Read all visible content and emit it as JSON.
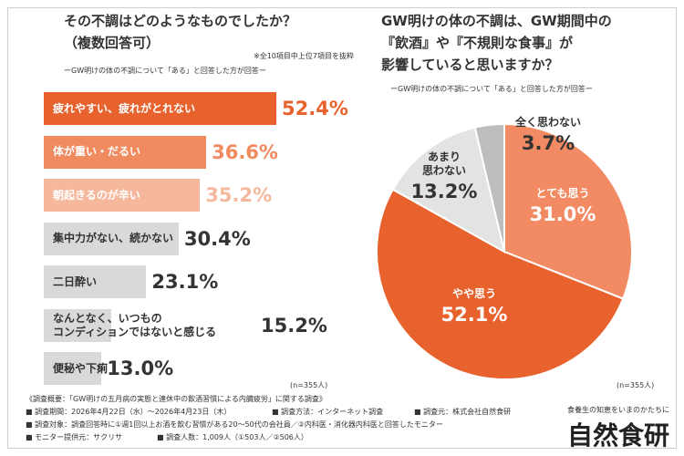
{
  "left": {
    "title_line1": "その不調はどのようなものでしたか？",
    "title_line2": "（複数回答可）",
    "note": "※全10項目中上位7項目を抜粋",
    "subtitle": "ーGW明けの体の不調について「ある」と回答した方が回答ー",
    "n": "(n=355人)"
  },
  "right": {
    "title_line1": "GW明けの体の不調は、GW期間中の",
    "title_line2": "『飲酒』や『不規則な食事』が",
    "title_line3": "影響していると思いますか？",
    "subtitle": "ーGW明けの体の不調について「ある」と回答した方が回答ー",
    "n": "(n=355人)"
  },
  "footer": {
    "line1": "《調査概要：「GW明けの五月病の実態と連休中の飲酒習慣による内臓疲労」に関する調査》",
    "period": "■ 調査期間：2026年4月22日（水）～2026年4月23日（木）",
    "method": "■ 調査方法：インターネット調査",
    "source": "■ 調査元：株式会社自然食研",
    "target": "■ 調査対象：調査回答時に①週1回以上お酒を飲む習慣がある20～50代の会社員／②内科医・消化器内科医と回答したモニター",
    "provider": "■ モニター提供元：サクリサ",
    "count": "■ 調査人数：1,009人（①503人／②506人）"
  },
  "brand": {
    "tagline": "食養生の知恵をいまのかたちに",
    "name": "自然食研"
  },
  "chart_data": [
    {
      "type": "bar",
      "orientation": "horizontal",
      "title": "その不調はどのようなものでしたか？（複数回答可）",
      "categories": [
        "疲れやすい、疲れがとれない",
        "体が重い・だるい",
        "朝起きるのが辛い",
        "集中力がない、続かない",
        "二日酔い",
        "なんとなく、いつものコンディションではないと感じる",
        "便秘や下痢"
      ],
      "display_labels": [
        [
          "疲れやすい、疲れがとれない"
        ],
        [
          "体が重い・だるい"
        ],
        [
          "朝起きるのが辛い"
        ],
        [
          "集中力がない、続かない"
        ],
        [
          "二日酔い"
        ],
        [
          "なんとなく、いつもの",
          "コンディションではないと感じる"
        ],
        [
          "便秘や下痢"
        ]
      ],
      "values": [
        52.4,
        36.6,
        35.2,
        30.4,
        23.1,
        15.2,
        13.0
      ],
      "value_labels": [
        "52.4%",
        "36.6%",
        "35.2%",
        "30.4%",
        "23.1%",
        "15.2%",
        "13.0%"
      ],
      "unit": "%",
      "colors": [
        "#e8622d",
        "#f08a5f",
        "#f6b89c",
        "#d9d9d9",
        "#d9d9d9",
        "#d9d9d9",
        "#d9d9d9"
      ],
      "label_colors": [
        "#ffffff",
        "#ffffff",
        "#ffffff",
        "#333333",
        "#333333",
        "#333333",
        "#333333"
      ],
      "value_colors": [
        "#e8622d",
        "#f08a5f",
        "#f6b89c",
        "#333333",
        "#333333",
        "#333333",
        "#333333"
      ],
      "xlim": [
        0,
        52.4
      ]
    },
    {
      "type": "pie",
      "title": "GW明けの体の不調は、GW期間中の『飲酒』や『不規則な食事』が影響していると思いますか？",
      "slices": [
        {
          "label": "とても思う",
          "value": 31.0,
          "value_label": "31.0%",
          "color": "#f28b64",
          "text_color": "#ffffff"
        },
        {
          "label": "やや思う",
          "value": 52.1,
          "value_label": "52.1%",
          "color": "#e8622d",
          "text_color": "#ffffff"
        },
        {
          "label": "あまり\n思わない",
          "value": 13.2,
          "value_label": "13.2%",
          "color": "#e3e3e3",
          "text_color": "#333333"
        },
        {
          "label": "全く思わない",
          "value": 3.7,
          "value_label": "3.7%",
          "color": "#bdbdbd",
          "text_color": "#333333"
        }
      ],
      "start": "top",
      "direction": "clockwise"
    }
  ]
}
